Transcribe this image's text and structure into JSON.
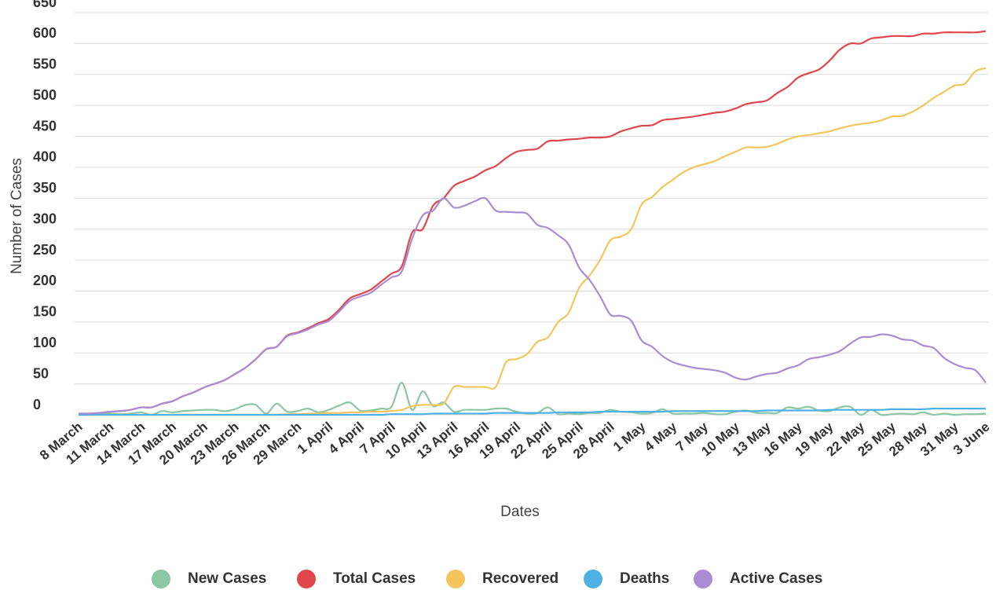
{
  "chart_data": {
    "type": "line",
    "y_label": "Number of Cases",
    "x_label": "Dates",
    "categories": [
      "8 March",
      null,
      null,
      "11 March",
      null,
      null,
      "14 March",
      null,
      null,
      "17 March",
      null,
      null,
      "20 March",
      null,
      null,
      "23 March",
      null,
      null,
      "26 March",
      null,
      null,
      "29 March",
      null,
      null,
      "1 April",
      null,
      null,
      "4 April",
      null,
      null,
      "7 April",
      null,
      null,
      "10 April",
      null,
      null,
      "13 April",
      null,
      null,
      "16 April",
      null,
      null,
      "19 April",
      null,
      null,
      "22 April",
      null,
      null,
      "25 April",
      null,
      null,
      "28 April",
      null,
      null,
      "1 May",
      null,
      null,
      "4 May",
      null,
      null,
      "7 May",
      null,
      null,
      "10 May",
      null,
      null,
      "13 May",
      null,
      null,
      "16 May",
      null,
      null,
      "19 May",
      null,
      null,
      "22 May",
      null,
      null,
      "25 May",
      null,
      null,
      "28 May",
      null,
      null,
      "31 May",
      null,
      null,
      "3 June"
    ],
    "series": [
      {
        "name": "New Cases",
        "color": "#8cc7a3",
        "values": [
          0,
          0,
          1,
          2,
          1,
          2,
          4,
          0,
          6,
          4,
          6,
          7,
          8,
          8,
          6,
          9,
          16,
          16,
          2,
          18,
          5,
          6,
          10,
          4,
          8,
          15,
          20,
          7,
          7,
          10,
          13,
          52,
          8,
          38,
          14,
          20,
          5,
          8,
          8,
          8,
          10,
          10,
          5,
          2,
          3,
          12,
          1,
          2,
          1,
          3,
          3,
          8,
          5,
          4,
          2,
          3,
          9,
          2,
          2,
          2,
          3,
          1,
          1,
          5,
          7,
          3,
          3,
          3,
          12,
          10,
          13,
          7,
          6,
          12,
          13,
          0,
          8,
          0,
          1,
          2,
          1,
          4,
          0,
          2,
          0,
          1,
          1,
          2
        ]
      },
      {
        "name": "Total Cases",
        "color": "#e0474c",
        "values": [
          2,
          2,
          3,
          5,
          6,
          8,
          12,
          12,
          18,
          22,
          30,
          36,
          44,
          50,
          56,
          66,
          76,
          90,
          106,
          110,
          128,
          133,
          140,
          148,
          155,
          170,
          188,
          195,
          202,
          215,
          228,
          240,
          295,
          300,
          338,
          350,
          370,
          378,
          385,
          395,
          402,
          415,
          425,
          428,
          430,
          442,
          443,
          445,
          446,
          448,
          448,
          450,
          458,
          463,
          467,
          468,
          476,
          478,
          480,
          482,
          485,
          488,
          490,
          495,
          502,
          505,
          508,
          520,
          530,
          545,
          552,
          558,
          572,
          590,
          600,
          600,
          608,
          610,
          612,
          612,
          612,
          616,
          616,
          618,
          618,
          618,
          618,
          620
        ]
      },
      {
        "name": "Recovered",
        "color": "#f2c65c",
        "values": [
          0,
          0,
          0,
          0,
          0,
          0,
          0,
          0,
          0,
          0,
          0,
          0,
          0,
          0,
          0,
          0,
          0,
          0,
          0,
          0,
          1,
          1,
          2,
          2,
          3,
          3,
          4,
          4,
          5,
          5,
          6,
          8,
          14,
          16,
          16,
          18,
          45,
          45,
          45,
          45,
          45,
          85,
          90,
          98,
          118,
          125,
          150,
          165,
          205,
          225,
          250,
          282,
          288,
          300,
          340,
          352,
          368,
          380,
          392,
          400,
          405,
          410,
          418,
          425,
          432,
          432,
          433,
          438,
          445,
          450,
          452,
          455,
          458,
          463,
          467,
          470,
          472,
          476,
          482,
          483,
          490,
          500,
          512,
          522,
          532,
          535,
          555,
          560
        ]
      },
      {
        "name": "Deaths",
        "color": "#4fb0e6",
        "values": [
          0,
          0,
          0,
          0,
          0,
          0,
          0,
          0,
          0,
          0,
          0,
          0,
          0,
          0,
          0,
          0,
          0,
          0,
          0,
          0,
          0,
          0,
          0,
          0,
          0,
          0,
          0,
          0,
          0,
          0,
          1,
          1,
          1,
          1,
          2,
          2,
          2,
          2,
          2,
          2,
          3,
          3,
          3,
          3,
          3,
          3,
          4,
          4,
          4,
          4,
          5,
          5,
          5,
          5,
          5,
          5,
          5,
          6,
          6,
          6,
          6,
          6,
          6,
          6,
          6,
          6,
          7,
          7,
          7,
          7,
          7,
          7,
          8,
          8,
          8,
          8,
          8,
          8,
          9,
          9,
          9,
          9,
          10,
          10,
          10,
          10,
          10,
          10
        ]
      },
      {
        "name": "Active Cases",
        "color": "#a98cd2",
        "values": [
          2,
          2,
          3,
          5,
          6,
          8,
          12,
          12,
          18,
          22,
          30,
          36,
          44,
          50,
          56,
          66,
          76,
          90,
          106,
          110,
          127,
          132,
          138,
          146,
          152,
          167,
          184,
          191,
          197,
          210,
          222,
          232,
          285,
          322,
          330,
          350,
          335,
          338,
          345,
          350,
          330,
          328,
          327,
          325,
          307,
          302,
          290,
          275,
          238,
          218,
          192,
          162,
          160,
          152,
          120,
          110,
          95,
          85,
          80,
          76,
          74,
          72,
          68,
          60,
          57,
          62,
          66,
          68,
          75,
          80,
          90,
          93,
          97,
          103,
          115,
          125,
          126,
          130,
          128,
          122,
          120,
          112,
          108,
          92,
          82,
          76,
          72,
          52
        ]
      }
    ],
    "ylim": [
      0,
      650
    ],
    "yticks": [
      0,
      50,
      100,
      150,
      200,
      250,
      300,
      350,
      400,
      450,
      500,
      550,
      600,
      650
    ],
    "grid": true,
    "legend": "bottom"
  }
}
